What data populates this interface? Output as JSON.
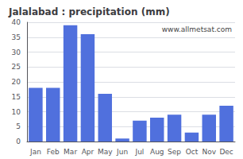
{
  "chart_data": {
    "type": "bar",
    "title": "Jalalabad : precipitation (mm)",
    "categories": [
      "Jan",
      "Feb",
      "Mar",
      "Apr",
      "May",
      "Jun",
      "Jul",
      "Aug",
      "Sep",
      "Oct",
      "Nov",
      "Dec"
    ],
    "values": [
      18,
      18,
      39,
      36,
      16,
      1,
      7,
      8,
      9,
      3,
      9,
      12
    ],
    "ylim": [
      0,
      40
    ],
    "yticks": [
      0,
      5,
      10,
      15,
      20,
      25,
      30,
      35,
      40
    ],
    "grid": true,
    "annotations": [
      "www.allmetsat.com"
    ]
  }
}
